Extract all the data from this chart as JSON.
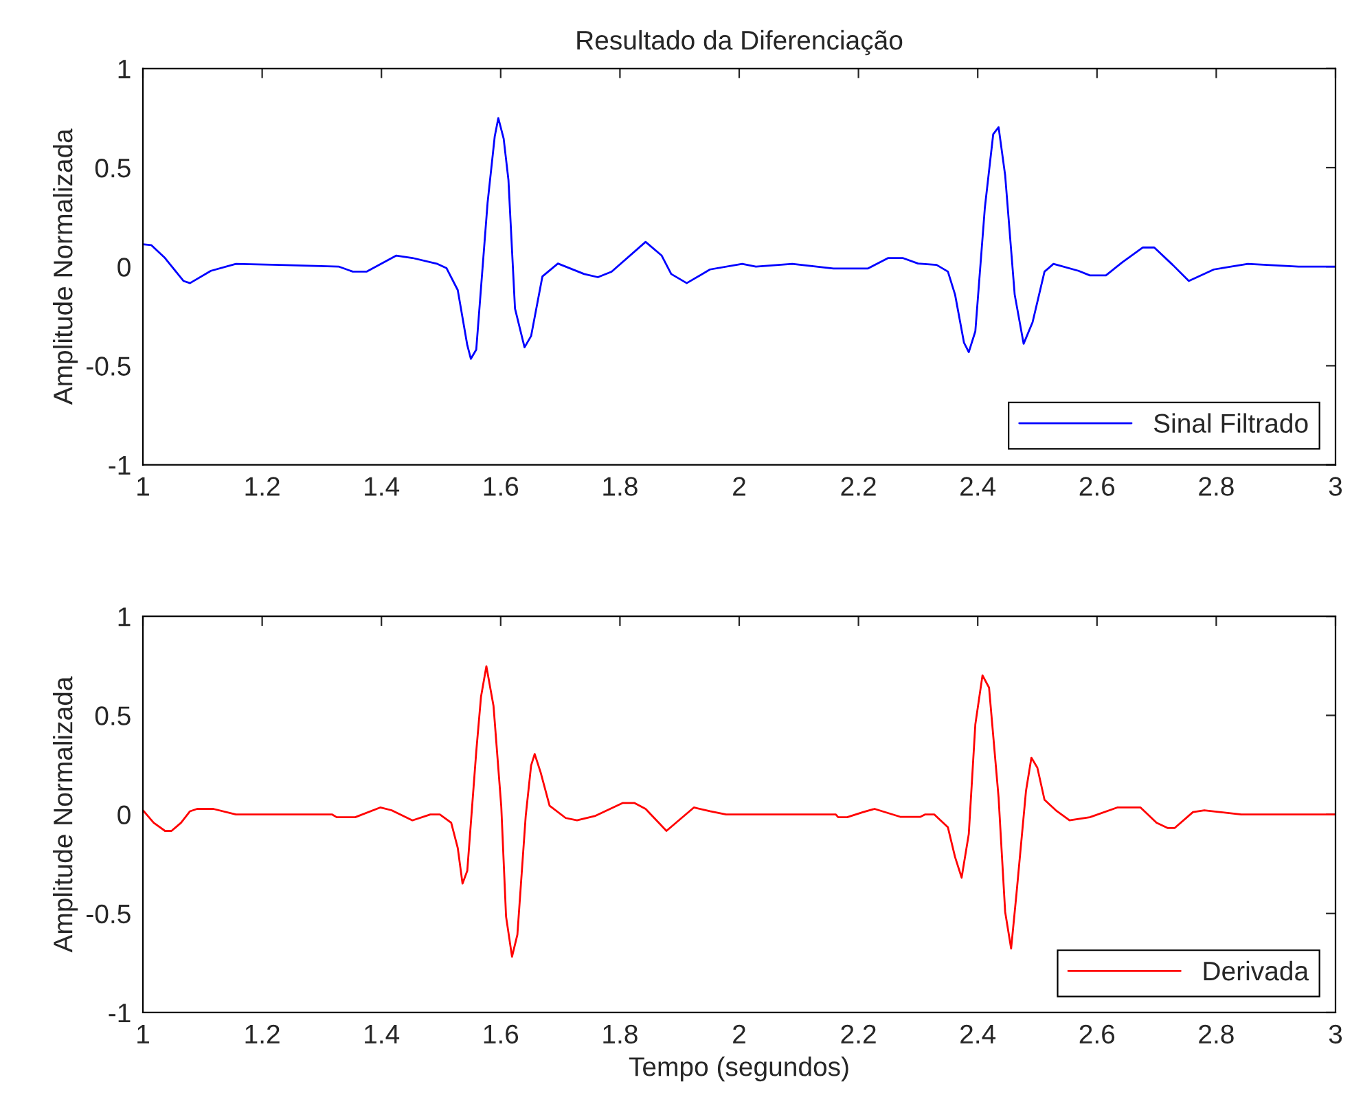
{
  "chart_data": [
    {
      "type": "line",
      "title": "Resultado da Diferenciação",
      "ylabel": "Amplitude Normalizada",
      "xlim": [
        1,
        3
      ],
      "ylim": [
        -1,
        1
      ],
      "xticks": [
        1,
        1.2,
        1.4,
        1.6,
        1.8,
        2,
        2.2,
        2.4,
        2.6,
        2.8,
        3
      ],
      "yticks": [
        -1,
        -0.5,
        0,
        0.5,
        1
      ],
      "grid": false,
      "legend": "bottom right",
      "line_style": "solid",
      "series": [
        {
          "name": "Sinal Filtrado",
          "color": "#0000ff",
          "x": [
            1.0,
            1.014,
            1.037,
            1.068,
            1.079,
            1.114,
            1.156,
            1.229,
            1.329,
            1.352,
            1.375,
            1.425,
            1.452,
            1.494,
            1.509,
            1.528,
            1.544,
            1.55,
            1.559,
            1.578,
            1.59,
            1.596,
            1.605,
            1.613,
            1.624,
            1.64,
            1.651,
            1.67,
            1.696,
            1.74,
            1.763,
            1.786,
            1.843,
            1.87,
            1.886,
            1.912,
            1.951,
            2.005,
            2.028,
            2.089,
            2.158,
            2.216,
            2.25,
            2.274,
            2.3,
            2.331,
            2.35,
            2.362,
            2.377,
            2.385,
            2.396,
            2.412,
            2.426,
            2.435,
            2.446,
            2.462,
            2.477,
            2.492,
            2.512,
            2.527,
            2.569,
            2.588,
            2.615,
            2.642,
            2.677,
            2.696,
            2.727,
            2.754,
            2.796,
            2.853,
            2.938,
            3.0
          ],
          "values": [
            0.113,
            0.109,
            0.044,
            -0.072,
            -0.083,
            -0.021,
            0.014,
            0.009,
            0.0,
            -0.025,
            -0.025,
            0.056,
            0.044,
            0.014,
            -0.007,
            -0.118,
            -0.396,
            -0.465,
            -0.419,
            0.322,
            0.657,
            0.75,
            0.646,
            0.438,
            -0.211,
            -0.407,
            -0.35,
            -0.049,
            0.016,
            -0.037,
            -0.053,
            -0.025,
            0.125,
            0.056,
            -0.037,
            -0.083,
            -0.014,
            0.014,
            0.0,
            0.014,
            -0.009,
            -0.009,
            0.044,
            0.044,
            0.016,
            0.009,
            -0.025,
            -0.141,
            -0.384,
            -0.431,
            -0.326,
            0.299,
            0.669,
            0.704,
            0.461,
            -0.141,
            -0.389,
            -0.28,
            -0.025,
            0.014,
            -0.021,
            -0.044,
            -0.044,
            0.021,
            0.097,
            0.097,
            0.009,
            -0.072,
            -0.014,
            0.014,
            0.0,
            0.0
          ]
        }
      ]
    },
    {
      "type": "line",
      "xlabel": "Tempo (segundos)",
      "ylabel": "Amplitude Normalizada",
      "xlim": [
        1,
        3
      ],
      "ylim": [
        -1,
        1
      ],
      "xticks": [
        1,
        1.2,
        1.4,
        1.6,
        1.8,
        2,
        2.2,
        2.4,
        2.6,
        2.8,
        3
      ],
      "yticks": [
        -1,
        -0.5,
        0,
        0.5,
        1
      ],
      "grid": false,
      "legend": "bottom right",
      "line_style": "solid",
      "series": [
        {
          "name": "Derivada",
          "color": "#ff0000",
          "x": [
            1.0,
            1.018,
            1.037,
            1.048,
            1.064,
            1.079,
            1.091,
            1.118,
            1.156,
            1.317,
            1.325,
            1.356,
            1.398,
            1.417,
            1.452,
            1.482,
            1.498,
            1.517,
            1.528,
            1.536,
            1.544,
            1.559,
            1.567,
            1.576,
            1.588,
            1.601,
            1.609,
            1.619,
            1.628,
            1.642,
            1.651,
            1.657,
            1.667,
            1.682,
            1.709,
            1.728,
            1.759,
            1.805,
            1.824,
            1.843,
            1.878,
            1.924,
            1.951,
            1.978,
            2.005,
            2.162,
            2.166,
            2.181,
            2.208,
            2.227,
            2.27,
            2.304,
            2.312,
            2.327,
            2.35,
            2.362,
            2.373,
            2.385,
            2.396,
            2.408,
            2.419,
            2.435,
            2.446,
            2.456,
            2.465,
            2.481,
            2.49,
            2.5,
            2.512,
            2.531,
            2.554,
            2.588,
            2.634,
            2.673,
            2.7,
            2.719,
            2.73,
            2.761,
            2.78,
            2.842,
            3.0
          ],
          "values": [
            0.021,
            -0.042,
            -0.083,
            -0.083,
            -0.042,
            0.016,
            0.028,
            0.028,
            0.0,
            0.0,
            -0.014,
            -0.014,
            0.035,
            0.021,
            -0.03,
            0.0,
            0.0,
            -0.042,
            -0.169,
            -0.349,
            -0.284,
            0.316,
            0.594,
            0.748,
            0.547,
            0.039,
            -0.515,
            -0.718,
            -0.607,
            -0.007,
            0.247,
            0.305,
            0.212,
            0.044,
            -0.018,
            -0.03,
            -0.007,
            0.058,
            0.058,
            0.028,
            -0.083,
            0.035,
            0.016,
            0.0,
            0.0,
            0.0,
            -0.014,
            -0.014,
            0.012,
            0.028,
            -0.012,
            -0.012,
            0.0,
            0.0,
            -0.065,
            -0.215,
            -0.319,
            -0.099,
            0.455,
            0.702,
            0.64,
            0.085,
            -0.492,
            -0.677,
            -0.4,
            0.12,
            0.286,
            0.236,
            0.074,
            0.021,
            -0.03,
            -0.014,
            0.035,
            0.035,
            -0.042,
            -0.069,
            -0.069,
            0.012,
            0.021,
            0.0,
            0.0
          ]
        }
      ]
    }
  ]
}
